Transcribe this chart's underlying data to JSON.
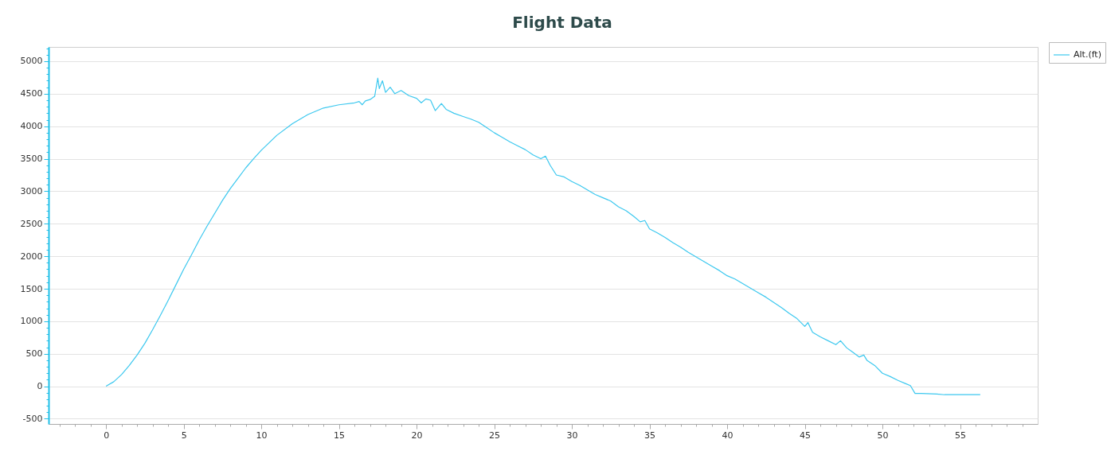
{
  "chart_data": {
    "type": "line",
    "title": "Flight Data",
    "legend": "top right",
    "grid": "y",
    "xlim": [
      -3.7,
      60
    ],
    "ylim": [
      -580,
      5220
    ],
    "xticks": [
      {
        "value": -3,
        "label": null
      },
      {
        "value": -2,
        "label": null
      },
      {
        "value": -1,
        "label": null
      },
      0,
      {
        "value": 1,
        "label": null
      },
      {
        "value": 2,
        "label": null
      },
      {
        "value": 3,
        "label": null
      },
      {
        "value": 4,
        "label": null
      },
      5,
      {
        "value": 6,
        "label": null
      },
      {
        "value": 7,
        "label": null
      },
      {
        "value": 8,
        "label": null
      },
      {
        "value": 9,
        "label": null
      },
      10,
      {
        "value": 11,
        "label": null
      },
      {
        "value": 12,
        "label": null
      },
      {
        "value": 13,
        "label": null
      },
      {
        "value": 14,
        "label": null
      },
      15,
      {
        "value": 16,
        "label": null
      },
      {
        "value": 17,
        "label": null
      },
      {
        "value": 18,
        "label": null
      },
      {
        "value": 19,
        "label": null
      },
      20,
      {
        "value": 21,
        "label": null
      },
      {
        "value": 22,
        "label": null
      },
      {
        "value": 23,
        "label": null
      },
      {
        "value": 24,
        "label": null
      },
      25,
      {
        "value": 26,
        "label": null
      },
      {
        "value": 27,
        "label": null
      },
      {
        "value": 28,
        "label": null
      },
      {
        "value": 29,
        "label": null
      },
      30,
      {
        "value": 31,
        "label": null
      },
      {
        "value": 32,
        "label": null
      },
      {
        "value": 33,
        "label": null
      },
      {
        "value": 34,
        "label": null
      },
      35,
      {
        "value": 36,
        "label": null
      },
      {
        "value": 37,
        "label": null
      },
      {
        "value": 38,
        "label": null
      },
      {
        "value": 39,
        "label": null
      },
      40,
      {
        "value": 41,
        "label": null
      },
      {
        "value": 42,
        "label": null
      },
      {
        "value": 43,
        "label": null
      },
      {
        "value": 44,
        "label": null
      },
      45,
      {
        "value": 46,
        "label": null
      },
      {
        "value": 47,
        "label": null
      },
      {
        "value": 48,
        "label": null
      },
      {
        "value": 49,
        "label": null
      },
      50,
      {
        "value": 51,
        "label": null
      },
      {
        "value": 52,
        "label": null
      },
      {
        "value": 53,
        "label": null
      },
      {
        "value": 54,
        "label": null
      },
      55,
      {
        "value": 56,
        "label": null
      },
      {
        "value": 57,
        "label": null
      },
      {
        "value": 58,
        "label": null
      },
      {
        "value": 59,
        "label": null
      }
    ],
    "yticks": [
      -500,
      {
        "value": -400,
        "label": null
      },
      {
        "value": -300,
        "label": null
      },
      {
        "value": -200,
        "label": null
      },
      {
        "value": -100,
        "label": null
      },
      0,
      {
        "value": 100,
        "label": null
      },
      {
        "value": 200,
        "label": null
      },
      {
        "value": 300,
        "label": null
      },
      {
        "value": 400,
        "label": null
      },
      500,
      {
        "value": 600,
        "label": null
      },
      {
        "value": 700,
        "label": null
      },
      {
        "value": 800,
        "label": null
      },
      {
        "value": 900,
        "label": null
      },
      1000,
      {
        "value": 1100,
        "label": null
      },
      {
        "value": 1200,
        "label": null
      },
      {
        "value": 1300,
        "label": null
      },
      {
        "value": 1400,
        "label": null
      },
      1500,
      {
        "value": 1600,
        "label": null
      },
      {
        "value": 1700,
        "label": null
      },
      {
        "value": 1800,
        "label": null
      },
      {
        "value": 1900,
        "label": null
      },
      2000,
      {
        "value": 2100,
        "label": null
      },
      {
        "value": 2200,
        "label": null
      },
      {
        "value": 2300,
        "label": null
      },
      {
        "value": 2400,
        "label": null
      },
      2500,
      {
        "value": 2600,
        "label": null
      },
      {
        "value": 2700,
        "label": null
      },
      {
        "value": 2800,
        "label": null
      },
      {
        "value": 2900,
        "label": null
      },
      3000,
      {
        "value": 3100,
        "label": null
      },
      {
        "value": 3200,
        "label": null
      },
      {
        "value": 3300,
        "label": null
      },
      {
        "value": 3400,
        "label": null
      },
      3500,
      {
        "value": 3600,
        "label": null
      },
      {
        "value": 3700,
        "label": null
      },
      {
        "value": 3800,
        "label": null
      },
      {
        "value": 3900,
        "label": null
      },
      4000,
      {
        "value": 4100,
        "label": null
      },
      {
        "value": 4200,
        "label": null
      },
      {
        "value": 4300,
        "label": null
      },
      {
        "value": 4400,
        "label": null
      },
      4500,
      {
        "value": 4600,
        "label": null
      },
      {
        "value": 4700,
        "label": null
      },
      {
        "value": 4800,
        "label": null
      },
      {
        "value": 4900,
        "label": null
      },
      5000,
      {
        "value": 5100,
        "label": null
      },
      {
        "value": 5200,
        "label": null
      }
    ],
    "series": [
      {
        "name": "Alt.(ft)",
        "color": "#3cc8ef",
        "x": [
          0,
          0.5,
          1,
          1.5,
          2,
          2.5,
          3,
          3.5,
          4,
          4.5,
          5,
          5.5,
          6,
          6.5,
          7,
          7.5,
          8,
          8.5,
          9,
          9.5,
          10,
          11,
          12,
          13,
          14,
          15,
          16,
          16.3,
          16.5,
          16.7,
          17,
          17.3,
          17.5,
          17.6,
          17.8,
          18,
          18.3,
          18.6,
          19,
          19.5,
          20,
          20.3,
          20.6,
          20.9,
          21.2,
          21.6,
          21.9,
          22.4,
          23,
          23.5,
          24,
          24.5,
          25,
          25.5,
          26,
          26.5,
          27,
          27.5,
          28,
          28.3,
          28.6,
          29,
          29.5,
          30,
          30.5,
          31,
          31.5,
          32,
          32.5,
          33,
          33.5,
          34,
          34.4,
          34.7,
          35,
          35.5,
          36,
          36.5,
          37,
          37.5,
          38,
          38.5,
          39,
          39.5,
          40,
          40.5,
          41,
          41.5,
          42,
          42.5,
          43,
          43.5,
          44,
          44.5,
          45,
          45.2,
          45.5,
          46,
          46.5,
          47,
          47.3,
          47.7,
          48,
          48.5,
          48.8,
          49,
          49.5,
          50,
          50.5,
          51,
          51.5,
          51.8,
          52.1,
          52.5,
          53.5,
          54,
          55,
          56.3
        ],
        "values": [
          0,
          70,
          180,
          320,
          480,
          660,
          870,
          1090,
          1320,
          1560,
          1800,
          2020,
          2250,
          2460,
          2660,
          2860,
          3040,
          3200,
          3360,
          3500,
          3630,
          3860,
          4040,
          4180,
          4280,
          4330,
          4360,
          4380,
          4330,
          4390,
          4410,
          4460,
          4740,
          4580,
          4700,
          4520,
          4600,
          4500,
          4550,
          4470,
          4430,
          4360,
          4420,
          4400,
          4240,
          4350,
          4260,
          4200,
          4150,
          4110,
          4060,
          3980,
          3900,
          3830,
          3760,
          3700,
          3640,
          3560,
          3500,
          3540,
          3400,
          3250,
          3220,
          3150,
          3090,
          3020,
          2950,
          2900,
          2850,
          2760,
          2700,
          2610,
          2530,
          2550,
          2420,
          2360,
          2290,
          2210,
          2140,
          2060,
          1990,
          1920,
          1850,
          1780,
          1700,
          1650,
          1580,
          1510,
          1440,
          1370,
          1290,
          1210,
          1120,
          1040,
          920,
          980,
          830,
          760,
          700,
          640,
          700,
          590,
          540,
          450,
          480,
          400,
          320,
          200,
          150,
          90,
          40,
          10,
          -110,
          -110,
          -120,
          -130,
          -130,
          -130
        ]
      }
    ]
  }
}
